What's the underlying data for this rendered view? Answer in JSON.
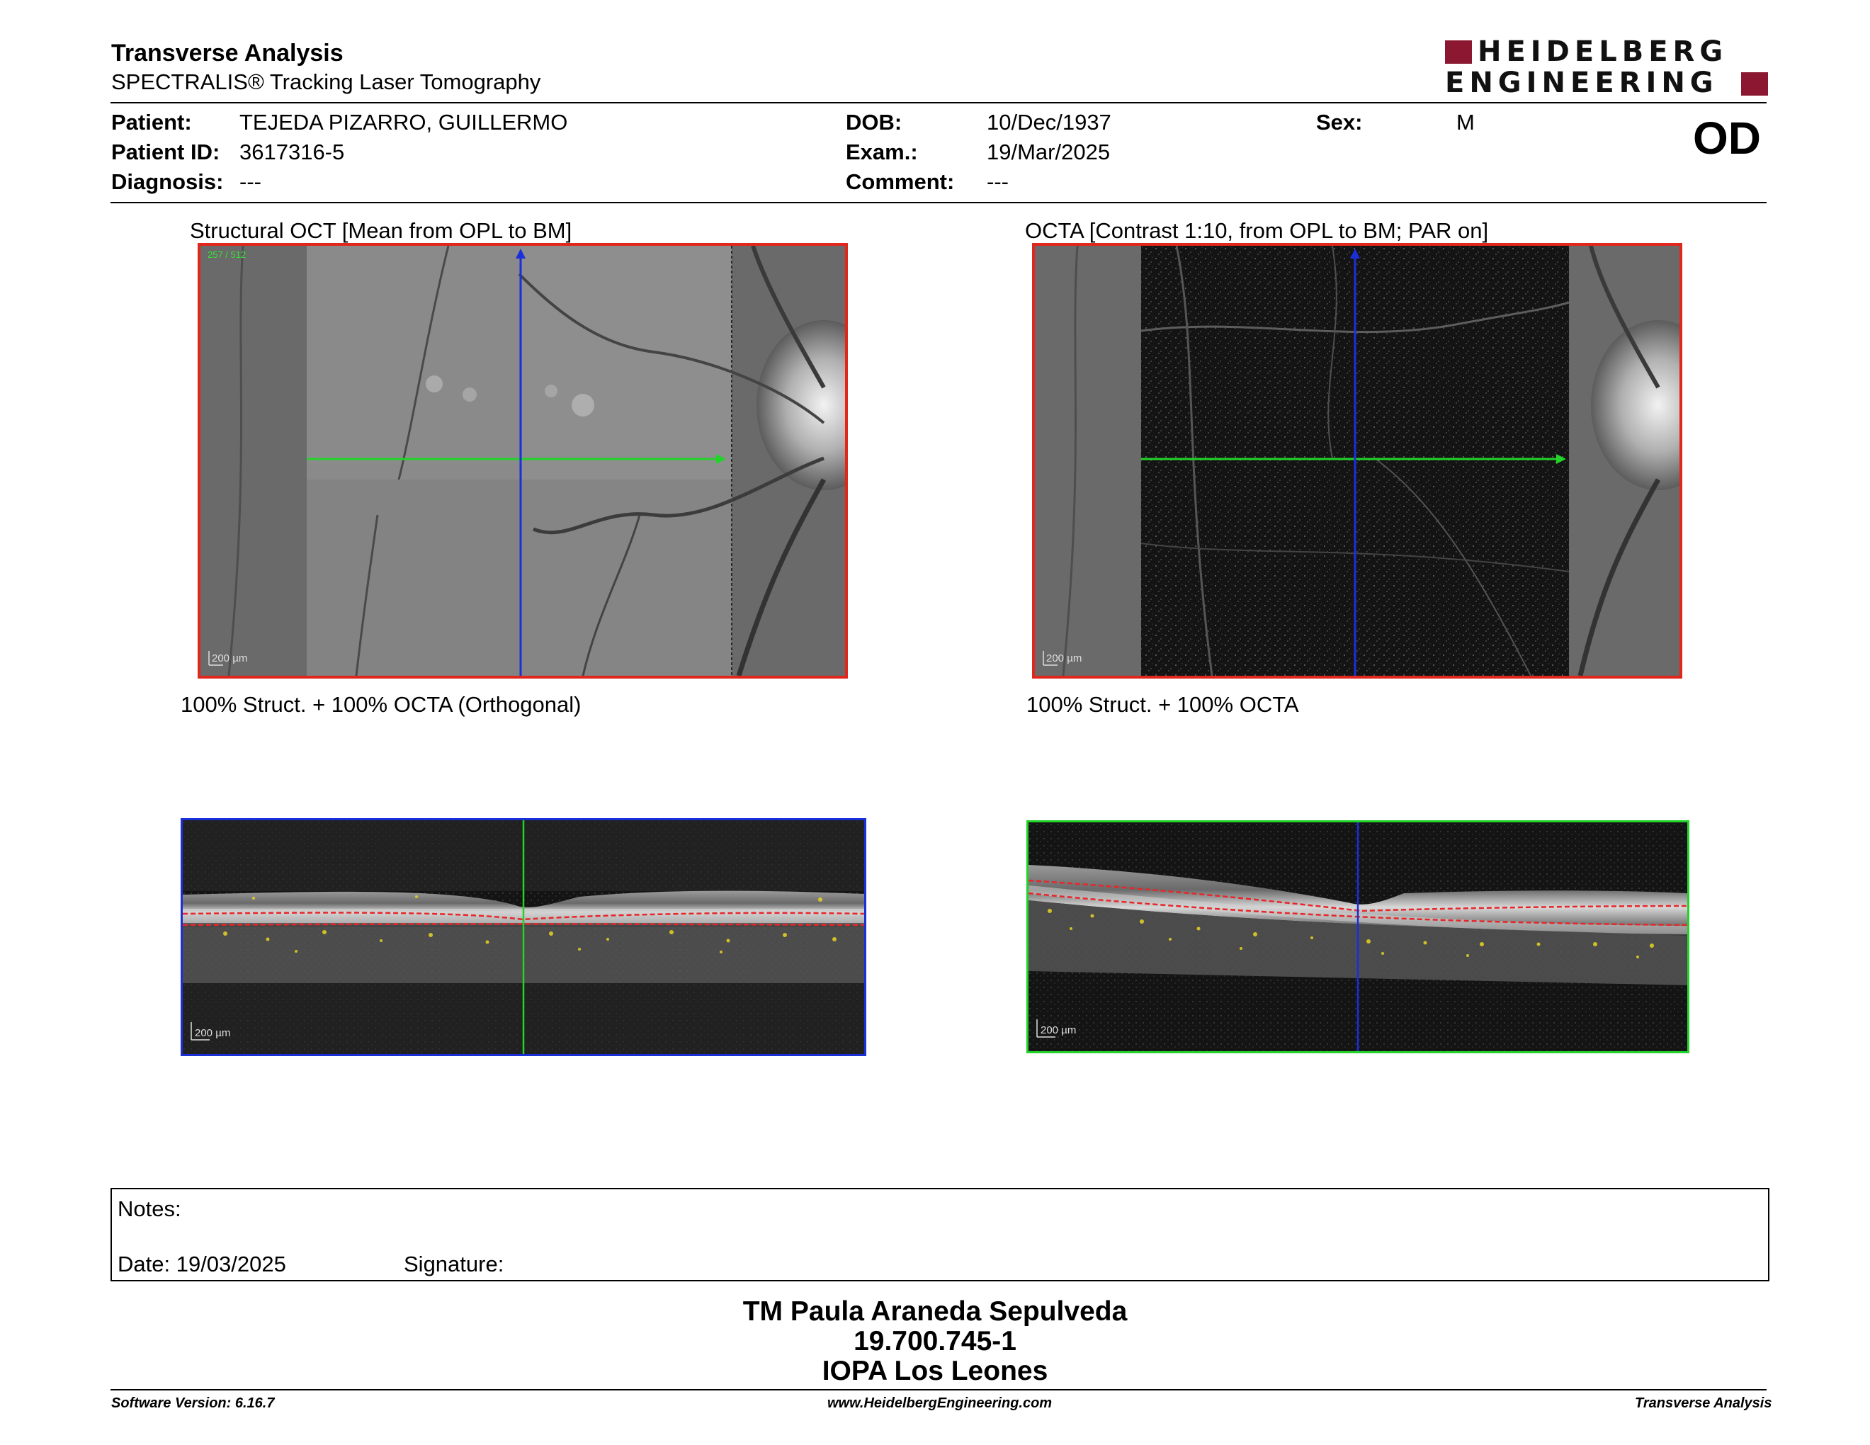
{
  "header": {
    "title": "Transverse Analysis",
    "subtitle": "SPECTRALIS® Tracking Laser Tomography",
    "logo": {
      "line1": "HEIDELBERG",
      "line2": "ENGINEERING",
      "brand_color": "#8c1731"
    }
  },
  "patient": {
    "patient_label": "Patient:",
    "patient_value": "TEJEDA PIZARRO, GUILLERMO",
    "id_label": "Patient ID:",
    "id_value": "3617316-5",
    "diagnosis_label": "Diagnosis:",
    "diagnosis_value": "---",
    "dob_label": "DOB:",
    "dob_value": "10/Dec/1937",
    "exam_label": "Exam.:",
    "exam_value": "19/Mar/2025",
    "comment_label": "Comment:",
    "comment_value": "---",
    "sex_label": "Sex:",
    "sex_value": "M",
    "eye": "OD"
  },
  "images": {
    "structural_caption": "Structural OCT [Mean from OPL to BM]",
    "octa_caption": "OCTA [Contrast 1:10, from OPL to BM; PAR on]",
    "structural_overlay_caption": "100% Struct. + 100% OCTA (Orthogonal)",
    "octa_overlay_caption": "100% Struct. + 100% OCTA",
    "scale_label": "200 µm",
    "frame_counter": "257 / 512",
    "colors": {
      "fundus_border": "#e1261c",
      "horizontal_marker": "#22d32a",
      "vertical_marker": "#1a2fd8",
      "bscan_blue_border": "#1a2fd8",
      "bscan_green_border": "#22d32a",
      "segmentation_line": "#e8262a",
      "flow_overlay": "#e8d421"
    }
  },
  "notes": {
    "notes_label": "Notes:",
    "date_label": "Date: 19/03/2025",
    "signature_label": "Signature:"
  },
  "signature_block": {
    "name": "TM Paula Araneda Sepulveda",
    "rut": "19.700.745-1",
    "institution": "IOPA Los Leones"
  },
  "footer": {
    "software": "Software Version: 6.16.7",
    "website": "www.HeidelbergEngineering.com",
    "report_type": "Transverse Analysis"
  }
}
